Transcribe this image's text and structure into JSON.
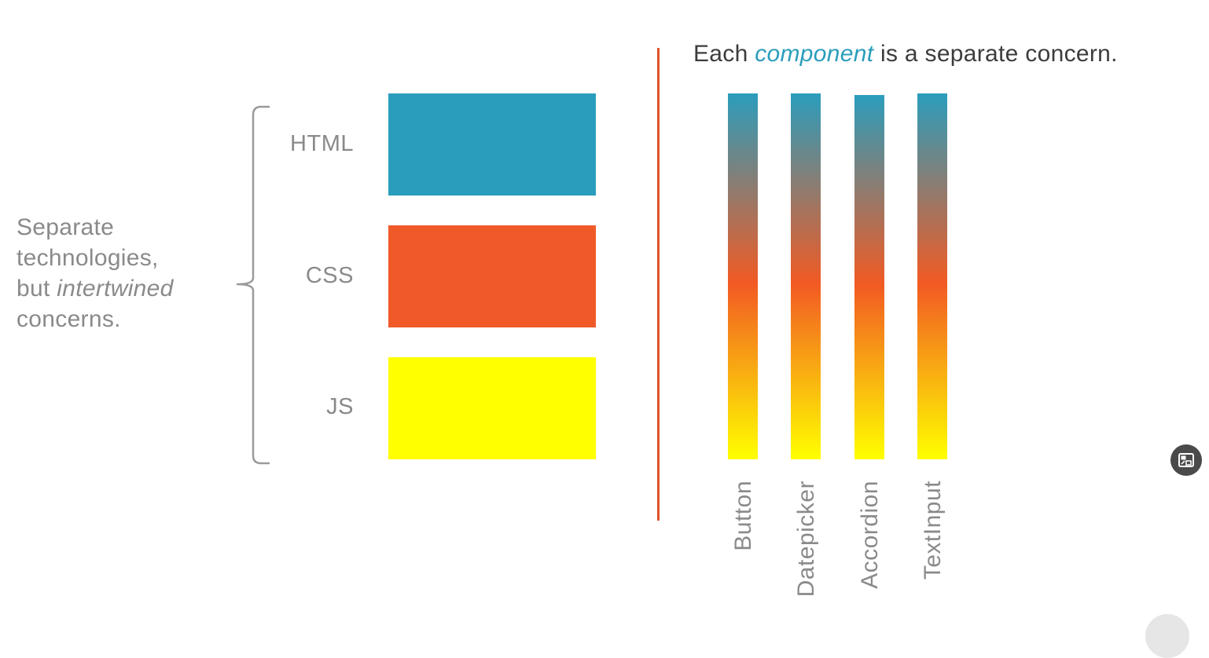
{
  "left_description": {
    "line1": "Separate",
    "line2": "technologies,",
    "line3_prefix": "but ",
    "line3_emphasis": "intertwined",
    "line4": "concerns."
  },
  "technologies": [
    {
      "label": "HTML",
      "color": "#2b9dbc"
    },
    {
      "label": "CSS",
      "color": "#ef5a28"
    },
    {
      "label": "JS",
      "color": "#ffff00"
    }
  ],
  "heading": {
    "prefix": "Each ",
    "emphasis": "component",
    "suffix": " is a separate concern.",
    "emphasis_color": "#2b9dbc"
  },
  "components": [
    {
      "label": "Button"
    },
    {
      "label": "Datepicker"
    },
    {
      "label": "Accordion"
    },
    {
      "label": "TextInput"
    }
  ],
  "colors": {
    "divider": "#e0522a",
    "brace": "#9a9a9a",
    "muted_text": "#8a8a8a",
    "gradient_top": "#2b9dbc",
    "gradient_mid": "#f25a23",
    "gradient_bottom": "#ffff00"
  },
  "icons": {
    "floating_button": "picture-in-picture-icon"
  }
}
